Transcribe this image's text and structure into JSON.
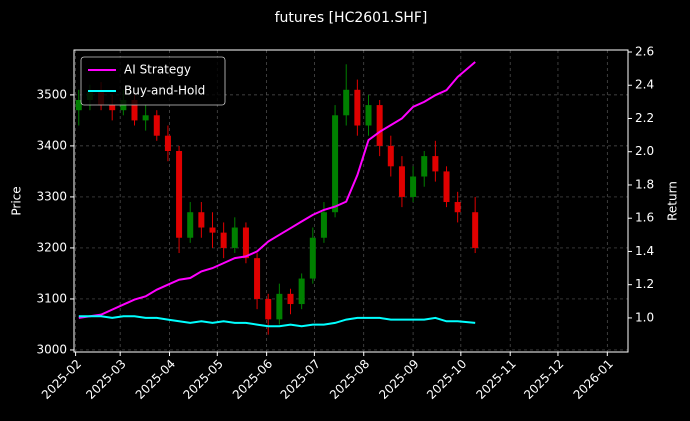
{
  "chart_data": {
    "type": "candlestick",
    "title": "futures [HC2601.SHF]",
    "y_label": "Price",
    "y2_label": "Return",
    "x": [
      "2025-02-03",
      "2025-02-10",
      "2025-02-17",
      "2025-02-24",
      "2025-03-03",
      "2025-03-10",
      "2025-03-17",
      "2025-03-24",
      "2025-03-31",
      "2025-04-07",
      "2025-04-14",
      "2025-04-21",
      "2025-04-28",
      "2025-05-05",
      "2025-05-12",
      "2025-05-19",
      "2025-05-26",
      "2025-06-02",
      "2025-06-09",
      "2025-06-16",
      "2025-06-23",
      "2025-06-30",
      "2025-07-07",
      "2025-07-14",
      "2025-07-21",
      "2025-07-28",
      "2025-08-04",
      "2025-08-11",
      "2025-08-18",
      "2025-08-25",
      "2025-09-01",
      "2025-09-08",
      "2025-09-15",
      "2025-09-22",
      "2025-09-29",
      "2025-10-10"
    ],
    "open": [
      3470,
      3490,
      3505,
      3480,
      3470,
      3490,
      3450,
      3460,
      3420,
      3390,
      3220,
      3270,
      3240,
      3230,
      3200,
      3240,
      3180,
      3100,
      3060,
      3110,
      3090,
      3140,
      3220,
      3270,
      3460,
      3510,
      3440,
      3480,
      3400,
      3360,
      3300,
      3340,
      3380,
      3350,
      3290,
      3270
    ],
    "high": [
      3510,
      3520,
      3525,
      3500,
      3510,
      3500,
      3480,
      3470,
      3440,
      3400,
      3290,
      3290,
      3270,
      3250,
      3260,
      3250,
      3190,
      3110,
      3130,
      3120,
      3150,
      3240,
      3290,
      3480,
      3560,
      3530,
      3500,
      3490,
      3420,
      3380,
      3360,
      3390,
      3410,
      3360,
      3310,
      3300
    ],
    "low": [
      3440,
      3470,
      3470,
      3450,
      3460,
      3440,
      3430,
      3410,
      3370,
      3190,
      3210,
      3220,
      3200,
      3180,
      3190,
      3170,
      3080,
      3030,
      3050,
      3070,
      3080,
      3130,
      3210,
      3260,
      3440,
      3420,
      3420,
      3380,
      3340,
      3280,
      3290,
      3320,
      3330,
      3280,
      3250,
      3190
    ],
    "close": [
      3490,
      3505,
      3480,
      3470,
      3490,
      3450,
      3460,
      3420,
      3390,
      3220,
      3270,
      3240,
      3230,
      3200,
      3240,
      3180,
      3100,
      3060,
      3110,
      3090,
      3140,
      3220,
      3270,
      3460,
      3510,
      3440,
      3480,
      3400,
      3360,
      3300,
      3340,
      3380,
      3350,
      3290,
      3270,
      3200
    ],
    "up_color": "#008000",
    "down_color": "#e00000",
    "series": [
      {
        "name": "AI Strategy",
        "color": "#ff00ff",
        "axis": "y2",
        "values": [
          1.0,
          1.01,
          1.02,
          1.05,
          1.08,
          1.11,
          1.13,
          1.17,
          1.2,
          1.23,
          1.24,
          1.28,
          1.3,
          1.33,
          1.36,
          1.37,
          1.4,
          1.46,
          1.5,
          1.54,
          1.58,
          1.62,
          1.65,
          1.67,
          1.7,
          1.86,
          2.07,
          2.12,
          2.16,
          2.2,
          2.27,
          2.3,
          2.34,
          2.37,
          2.45,
          2.54
        ]
      },
      {
        "name": "Buy-and-Hold",
        "color": "#00ffff",
        "axis": "y2",
        "values": [
          1.01,
          1.01,
          1.01,
          1.0,
          1.01,
          1.01,
          1.0,
          1.0,
          0.99,
          0.98,
          0.97,
          0.98,
          0.97,
          0.98,
          0.97,
          0.97,
          0.96,
          0.95,
          0.95,
          0.96,
          0.95,
          0.96,
          0.96,
          0.97,
          0.99,
          1.0,
          1.0,
          1.0,
          0.99,
          0.99,
          0.99,
          0.99,
          1.0,
          0.98,
          0.98,
          0.97
        ]
      }
    ],
    "xlim": [
      "2025-01-31",
      "2026-01-14"
    ],
    "xticks": [
      {
        "value": "2025-02-01",
        "label": "2025-02"
      },
      {
        "value": "2025-03-01",
        "label": "2025-03"
      },
      {
        "value": "2025-04-01",
        "label": "2025-04"
      },
      {
        "value": "2025-05-01",
        "label": "2025-05"
      },
      {
        "value": "2025-06-01",
        "label": "2025-06"
      },
      {
        "value": "2025-07-01",
        "label": "2025-07"
      },
      {
        "value": "2025-08-01",
        "label": "2025-08"
      },
      {
        "value": "2025-09-01",
        "label": "2025-09"
      },
      {
        "value": "2025-10-01",
        "label": "2025-10"
      },
      {
        "value": "2025-11-01",
        "label": "2025-11"
      },
      {
        "value": "2025-12-01",
        "label": "2025-12"
      },
      {
        "value": "2026-01-01",
        "label": "2026-01"
      }
    ],
    "ylim": [
      2996,
      3588
    ],
    "yticks": [
      3000,
      3100,
      3200,
      3300,
      3400,
      3500
    ],
    "y2lim": [
      0.795,
      2.612
    ],
    "y2ticks": [
      {
        "value": 1,
        "label": "1.0"
      },
      1.2,
      1.4,
      1.6,
      1.8,
      {
        "value": 2,
        "label": "2.0"
      },
      2.2,
      2.4,
      2.6
    ],
    "grid": true,
    "legend": "upper left"
  }
}
